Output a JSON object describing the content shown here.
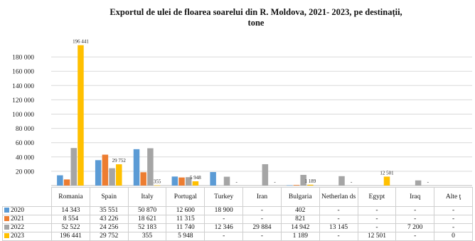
{
  "chart_data": {
    "type": "bar",
    "title_line1": "Exportul de ulei de floarea soarelui din R. Moldova, 2021- 2023, pe destinații,",
    "title_line2": "tone",
    "categories": [
      "Romania",
      "Spain",
      "Italy",
      "Portugal",
      "Turkey",
      "Iran",
      "Bulgaria",
      "Netherlan ds",
      "Egypt",
      "Iraq",
      "Alte ţ"
    ],
    "ylim": [
      0,
      200000
    ],
    "yticks": [
      20000,
      40000,
      60000,
      80000,
      100000,
      120000,
      140000,
      160000,
      180000
    ],
    "ytick_labels": [
      "20 000",
      "40 000",
      "60 000",
      "80 000",
      "100 000",
      "120 000",
      "140 000",
      "160 000",
      "180 000"
    ],
    "grid": true,
    "legend_position": "table-left",
    "series": [
      {
        "name": "2020",
        "color": "#5b9bd5",
        "values": [
          14343,
          35551,
          50870,
          12600,
          18900,
          0,
          402,
          0,
          0,
          0,
          0
        ],
        "cells": [
          "14 343",
          "35 551",
          "50 870",
          "12 600",
          "18 900",
          "-",
          "402",
          "-",
          "-",
          "-",
          "-"
        ]
      },
      {
        "name": "2021",
        "color": "#ed7d31",
        "values": [
          8554,
          43226,
          18621,
          11315,
          0,
          0,
          821,
          0,
          0,
          0,
          0
        ],
        "cells": [
          "8 554",
          "43 226",
          "18 621",
          "11 315",
          "-",
          "-",
          "821",
          "-",
          "-",
          "-",
          "-"
        ]
      },
      {
        "name": "2022",
        "color": "#a5a5a5",
        "values": [
          52522,
          24256,
          52183,
          11740,
          12346,
          29884,
          14942,
          13145,
          0,
          7200,
          0
        ],
        "cells": [
          "52 522",
          "24 256",
          "52 183",
          "11 740",
          "12 346",
          "29 884",
          "14 942",
          "13 145",
          "-",
          "7 200",
          "-"
        ]
      },
      {
        "name": "2023",
        "color": "#ffc000",
        "values": [
          196441,
          29752,
          355,
          5948,
          0,
          0,
          1189,
          0,
          12501,
          0,
          0
        ],
        "cells": [
          "196 441",
          "29 752",
          "355",
          "5 948",
          "-",
          "-",
          "1 189",
          "-",
          "12 501",
          "-",
          "0"
        ]
      }
    ],
    "bar_labels": [
      {
        "category": 0,
        "series": 3,
        "text": "196 441"
      },
      {
        "category": 1,
        "series": 3,
        "text": "29 752"
      },
      {
        "category": 2,
        "series": 3,
        "text": "355"
      },
      {
        "category": 3,
        "series": 3,
        "text": "5 948"
      },
      {
        "category": 4,
        "series": 3,
        "text": "-"
      },
      {
        "category": 5,
        "series": 3,
        "text": "-"
      },
      {
        "category": 6,
        "series": 3,
        "text": "1 189"
      },
      {
        "category": 7,
        "series": 3,
        "text": "-"
      },
      {
        "category": 8,
        "series": 3,
        "text": "12 501"
      },
      {
        "category": 9,
        "series": 3,
        "text": "-"
      }
    ]
  }
}
